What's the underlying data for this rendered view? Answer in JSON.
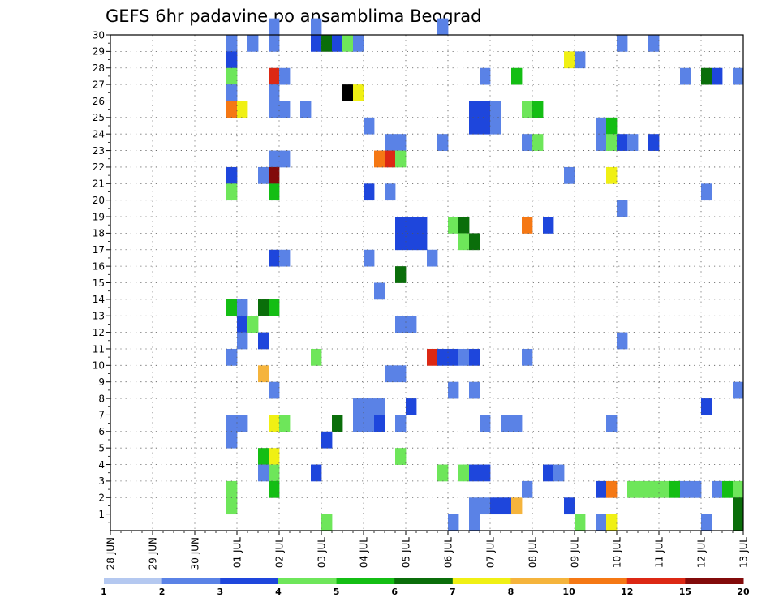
{
  "chart_data": {
    "type": "heatmap",
    "title": "GEFS 6hr padavine po ansamblima Beograd",
    "x_tick_labels": [
      "28 JUN",
      "29 JUN",
      "30 JUN",
      "01 JUL",
      "02 JUL",
      "03 JUL",
      "04 JUL",
      "05 JUL",
      "06 JUL",
      "07 JUL",
      "08 JUL",
      "09 JUL",
      "10 JUL",
      "11 JUL",
      "12 JUL",
      "13 JUL"
    ],
    "y_tick_labels": [
      "1",
      "2",
      "3",
      "4",
      "5",
      "6",
      "7",
      "8",
      "9",
      "10",
      "11",
      "12",
      "13",
      "14",
      "15",
      "16",
      "17",
      "18",
      "19",
      "20",
      "21",
      "22",
      "23",
      "24",
      "25",
      "26",
      "27",
      "28",
      "29",
      "30"
    ],
    "x_range": [
      0,
      60
    ],
    "y_range": [
      0,
      30
    ],
    "grid": true,
    "legend": {
      "position": "bottom",
      "thresholds": [
        "1",
        "2",
        "3",
        "4",
        "5",
        "6",
        "7",
        "8",
        "10",
        "12",
        "15",
        "20"
      ],
      "colors": [
        "#b4c8f0",
        "#5a82e6",
        "#1e46dc",
        "#6ee65a",
        "#14be14",
        "#0a6e0a",
        "#f0f014",
        "#f5b43c",
        "#f57814",
        "#dc2814",
        "#820a0a"
      ]
    },
    "cells": [
      [
        11,
        29,
        1
      ],
      [
        11,
        28,
        2
      ],
      [
        11,
        27,
        3
      ],
      [
        11,
        26,
        1
      ],
      [
        11,
        25,
        8
      ],
      [
        12,
        25,
        6
      ],
      [
        11,
        21,
        2
      ],
      [
        11,
        20,
        3
      ],
      [
        11,
        13,
        4
      ],
      [
        12,
        13,
        1
      ],
      [
        12,
        12,
        2
      ],
      [
        13,
        12,
        3
      ],
      [
        12,
        11,
        1
      ],
      [
        11,
        10,
        1
      ],
      [
        11,
        6,
        1
      ],
      [
        12,
        6,
        1
      ],
      [
        11,
        5,
        1
      ],
      [
        11,
        2,
        3
      ],
      [
        11,
        1,
        3
      ],
      [
        13,
        29,
        1
      ],
      [
        15,
        30,
        1
      ],
      [
        15,
        29,
        1
      ],
      [
        15,
        27,
        9
      ],
      [
        16,
        27,
        1
      ],
      [
        15,
        26,
        1
      ],
      [
        15,
        25,
        1
      ],
      [
        16,
        25,
        1
      ],
      [
        15,
        22,
        1
      ],
      [
        16,
        22,
        1
      ],
      [
        14,
        21,
        1
      ],
      [
        15,
        21,
        10
      ],
      [
        15,
        20,
        4
      ],
      [
        15,
        16,
        2
      ],
      [
        16,
        16,
        1
      ],
      [
        14,
        13,
        5
      ],
      [
        15,
        13,
        4
      ],
      [
        14,
        11,
        2
      ],
      [
        14,
        9,
        7
      ],
      [
        15,
        8,
        1
      ],
      [
        15,
        6,
        6
      ],
      [
        16,
        6,
        3
      ],
      [
        14,
        4,
        4
      ],
      [
        15,
        4,
        6
      ],
      [
        14,
        3,
        1
      ],
      [
        15,
        3,
        3
      ],
      [
        15,
        2,
        4
      ],
      [
        19,
        30,
        1
      ],
      [
        19,
        29,
        2
      ],
      [
        20,
        29,
        5
      ],
      [
        21,
        29,
        2
      ],
      [
        22,
        29,
        3
      ],
      [
        23,
        29,
        1
      ],
      [
        18,
        25,
        1
      ],
      [
        22,
        26,
        11
      ],
      [
        23,
        26,
        6
      ],
      [
        19,
        10,
        3
      ],
      [
        21,
        6,
        5
      ],
      [
        20,
        5,
        2
      ],
      [
        19,
        3,
        2
      ],
      [
        20,
        0,
        3
      ],
      [
        24,
        24,
        1
      ],
      [
        26,
        23,
        1
      ],
      [
        27,
        23,
        1
      ],
      [
        25,
        22,
        8
      ],
      [
        26,
        22,
        9
      ],
      [
        27,
        22,
        3
      ],
      [
        24,
        20,
        2
      ],
      [
        26,
        20,
        1
      ],
      [
        27,
        18,
        2
      ],
      [
        28,
        18,
        2
      ],
      [
        29,
        18,
        2
      ],
      [
        27,
        17,
        2
      ],
      [
        28,
        17,
        2
      ],
      [
        29,
        17,
        2
      ],
      [
        24,
        16,
        1
      ],
      [
        27,
        15,
        5
      ],
      [
        25,
        14,
        1
      ],
      [
        27,
        12,
        1
      ],
      [
        28,
        12,
        1
      ],
      [
        26,
        9,
        1
      ],
      [
        27,
        9,
        1
      ],
      [
        23,
        7,
        1
      ],
      [
        24,
        7,
        1
      ],
      [
        25,
        7,
        1
      ],
      [
        28,
        7,
        2
      ],
      [
        23,
        6,
        1
      ],
      [
        24,
        6,
        1
      ],
      [
        25,
        6,
        2
      ],
      [
        27,
        6,
        1
      ],
      [
        27,
        4,
        3
      ],
      [
        31,
        30,
        1
      ],
      [
        31,
        23,
        1
      ],
      [
        30,
        16,
        1
      ],
      [
        30,
        10,
        9
      ],
      [
        31,
        10,
        2
      ],
      [
        32,
        10,
        2
      ],
      [
        33,
        10,
        1
      ],
      [
        34,
        10,
        2
      ],
      [
        32,
        8,
        1
      ],
      [
        34,
        8,
        1
      ],
      [
        31,
        3,
        3
      ],
      [
        33,
        3,
        3
      ],
      [
        34,
        3,
        2
      ],
      [
        35,
        3,
        2
      ],
      [
        32,
        0,
        1
      ],
      [
        34,
        0,
        1
      ],
      [
        32,
        18,
        3
      ],
      [
        33,
        18,
        5
      ],
      [
        33,
        17,
        3
      ],
      [
        34,
        17,
        5
      ],
      [
        34,
        25,
        2
      ],
      [
        35,
        25,
        2
      ],
      [
        36,
        25,
        1
      ],
      [
        34,
        24,
        2
      ],
      [
        35,
        24,
        2
      ],
      [
        36,
        24,
        1
      ],
      [
        35,
        27,
        1
      ],
      [
        38,
        27,
        4
      ],
      [
        35,
        6,
        1
      ],
      [
        37,
        6,
        1
      ],
      [
        38,
        6,
        1
      ],
      [
        34,
        1,
        1
      ],
      [
        35,
        1,
        1
      ],
      [
        36,
        1,
        2
      ],
      [
        37,
        1,
        2
      ],
      [
        38,
        1,
        7
      ],
      [
        39,
        25,
        3
      ],
      [
        40,
        25,
        4
      ],
      [
        39,
        23,
        1
      ],
      [
        40,
        23,
        3
      ],
      [
        39,
        18,
        8
      ],
      [
        41,
        18,
        2
      ],
      [
        39,
        10,
        1
      ],
      [
        39,
        2,
        1
      ],
      [
        41,
        3,
        2
      ],
      [
        42,
        3,
        1
      ],
      [
        43,
        28,
        6
      ],
      [
        44,
        28,
        1
      ],
      [
        43,
        21,
        1
      ],
      [
        43,
        1,
        2
      ],
      [
        44,
        0,
        3
      ],
      [
        46,
        24,
        1
      ],
      [
        47,
        24,
        4
      ],
      [
        46,
        23,
        1
      ],
      [
        47,
        23,
        3
      ],
      [
        48,
        23,
        2
      ],
      [
        49,
        23,
        1
      ],
      [
        51,
        23,
        2
      ],
      [
        47,
        21,
        6
      ],
      [
        48,
        19,
        1
      ],
      [
        47,
        6,
        1
      ],
      [
        46,
        2,
        2
      ],
      [
        47,
        2,
        8
      ],
      [
        46,
        0,
        1
      ],
      [
        47,
        0,
        6
      ],
      [
        49,
        2,
        3
      ],
      [
        50,
        2,
        3
      ],
      [
        51,
        2,
        3
      ],
      [
        52,
        2,
        3
      ],
      [
        53,
        2,
        4
      ],
      [
        54,
        2,
        1
      ],
      [
        55,
        2,
        1
      ],
      [
        57,
        2,
        1
      ],
      [
        58,
        2,
        4
      ],
      [
        59,
        2,
        3
      ],
      [
        59,
        1,
        5
      ],
      [
        59,
        0,
        5
      ],
      [
        56,
        0,
        1
      ],
      [
        48,
        29,
        1
      ],
      [
        51,
        29,
        1
      ],
      [
        48,
        11,
        1
      ],
      [
        54,
        27,
        1
      ],
      [
        56,
        27,
        5
      ],
      [
        57,
        27,
        2
      ],
      [
        59,
        27,
        1
      ],
      [
        56,
        20,
        1
      ],
      [
        56,
        7,
        2
      ],
      [
        59,
        8,
        1
      ]
    ]
  }
}
